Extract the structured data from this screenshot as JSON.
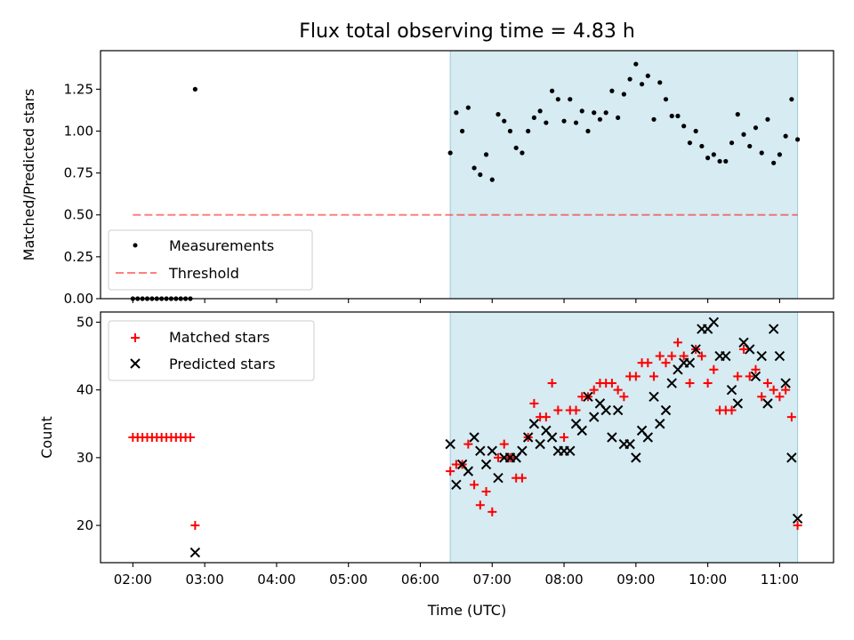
{
  "chart_data": [
    {
      "type": "scatter",
      "title": "Flux total observing time = 4.83 h",
      "xlabel": "",
      "ylabel": "Matched/Predicted stars",
      "ylim": [
        0,
        1.48
      ],
      "xlim": [
        "01:33",
        "11:45"
      ],
      "yticks": [
        0.0,
        0.25,
        0.5,
        0.75,
        1.0,
        1.25
      ],
      "ytick_labels": [
        "0.00",
        "0.25",
        "0.50",
        "0.75",
        "1.00",
        "1.25"
      ],
      "shaded_interval": {
        "start": "06:25",
        "end": "11:15",
        "color": "#add8e6"
      },
      "legend_position": "lower-left",
      "legend": [
        "Measurements",
        "Threshold"
      ],
      "threshold": {
        "value": 0.5,
        "x_start": "02:00",
        "x_end": "11:15",
        "color": "#ff0000"
      },
      "series": [
        {
          "name": "Measurements",
          "marker": "dot",
          "color": "#000000",
          "points": [
            [
              "02:00",
              0.0
            ],
            [
              "02:04",
              0.0
            ],
            [
              "02:08",
              0.0
            ],
            [
              "02:12",
              0.0
            ],
            [
              "02:16",
              0.0
            ],
            [
              "02:20",
              0.0
            ],
            [
              "02:24",
              0.0
            ],
            [
              "02:28",
              0.0
            ],
            [
              "02:32",
              0.0
            ],
            [
              "02:36",
              0.0
            ],
            [
              "02:40",
              0.0
            ],
            [
              "02:44",
              0.0
            ],
            [
              "02:48",
              0.0
            ],
            [
              "02:52",
              1.25
            ],
            [
              "06:25",
              0.87
            ],
            [
              "06:30",
              1.11
            ],
            [
              "06:35",
              1.0
            ],
            [
              "06:40",
              1.14
            ],
            [
              "06:45",
              0.78
            ],
            [
              "06:50",
              0.74
            ],
            [
              "06:55",
              0.86
            ],
            [
              "07:00",
              0.71
            ],
            [
              "07:05",
              1.1
            ],
            [
              "07:10",
              1.06
            ],
            [
              "07:15",
              1.0
            ],
            [
              "07:20",
              0.9
            ],
            [
              "07:25",
              0.87
            ],
            [
              "07:30",
              1.0
            ],
            [
              "07:35",
              1.08
            ],
            [
              "07:40",
              1.12
            ],
            [
              "07:45",
              1.05
            ],
            [
              "07:50",
              1.24
            ],
            [
              "07:55",
              1.19
            ],
            [
              "08:00",
              1.06
            ],
            [
              "08:05",
              1.19
            ],
            [
              "08:10",
              1.05
            ],
            [
              "08:15",
              1.12
            ],
            [
              "08:20",
              1.0
            ],
            [
              "08:25",
              1.11
            ],
            [
              "08:30",
              1.07
            ],
            [
              "08:35",
              1.11
            ],
            [
              "08:40",
              1.24
            ],
            [
              "08:45",
              1.08
            ],
            [
              "08:50",
              1.22
            ],
            [
              "08:55",
              1.31
            ],
            [
              "09:00",
              1.4
            ],
            [
              "09:05",
              1.28
            ],
            [
              "09:10",
              1.33
            ],
            [
              "09:15",
              1.07
            ],
            [
              "09:20",
              1.29
            ],
            [
              "09:25",
              1.19
            ],
            [
              "09:30",
              1.09
            ],
            [
              "09:35",
              1.09
            ],
            [
              "09:40",
              1.03
            ],
            [
              "09:45",
              0.93
            ],
            [
              "09:50",
              1.0
            ],
            [
              "09:55",
              0.91
            ],
            [
              "10:00",
              0.84
            ],
            [
              "10:05",
              0.86
            ],
            [
              "10:10",
              0.82
            ],
            [
              "10:15",
              0.82
            ],
            [
              "10:20",
              0.93
            ],
            [
              "10:25",
              1.1
            ],
            [
              "10:30",
              0.98
            ],
            [
              "10:35",
              0.91
            ],
            [
              "10:40",
              1.02
            ],
            [
              "10:45",
              0.87
            ],
            [
              "10:50",
              1.07
            ],
            [
              "10:55",
              0.81
            ],
            [
              "11:00",
              0.86
            ],
            [
              "11:05",
              0.97
            ],
            [
              "11:10",
              1.19
            ],
            [
              "11:15",
              0.95
            ]
          ]
        },
        {
          "name": "Threshold",
          "marker": "dashed-line",
          "color": "#ff0000",
          "points": [
            [
              "02:00",
              0.5
            ],
            [
              "11:15",
              0.5
            ]
          ]
        }
      ]
    },
    {
      "type": "scatter",
      "title": "",
      "xlabel": "Time (UTC)",
      "ylabel": "Count",
      "ylim": [
        14.5,
        51.5
      ],
      "xlim": [
        "01:33",
        "11:45"
      ],
      "yticks": [
        20,
        30,
        40,
        50
      ],
      "ytick_labels": [
        "20",
        "30",
        "40",
        "50"
      ],
      "xticks": [
        "02:00",
        "03:00",
        "04:00",
        "05:00",
        "06:00",
        "07:00",
        "08:00",
        "09:00",
        "10:00",
        "11:00"
      ],
      "shaded_interval": {
        "start": "06:25",
        "end": "11:15",
        "color": "#add8e6"
      },
      "legend_position": "upper-left",
      "legend": [
        "Matched stars",
        "Predicted stars"
      ],
      "series": [
        {
          "name": "Matched stars",
          "marker": "plus",
          "color": "#ff0000",
          "points": [
            [
              "02:00",
              33
            ],
            [
              "02:04",
              33
            ],
            [
              "02:08",
              33
            ],
            [
              "02:12",
              33
            ],
            [
              "02:16",
              33
            ],
            [
              "02:20",
              33
            ],
            [
              "02:24",
              33
            ],
            [
              "02:28",
              33
            ],
            [
              "02:32",
              33
            ],
            [
              "02:36",
              33
            ],
            [
              "02:40",
              33
            ],
            [
              "02:44",
              33
            ],
            [
              "02:48",
              33
            ],
            [
              "02:52",
              20
            ],
            [
              "06:25",
              28
            ],
            [
              "06:30",
              29
            ],
            [
              "06:35",
              29
            ],
            [
              "06:40",
              32
            ],
            [
              "06:45",
              26
            ],
            [
              "06:50",
              23
            ],
            [
              "06:55",
              25
            ],
            [
              "07:00",
              22
            ],
            [
              "07:05",
              30
            ],
            [
              "07:10",
              32
            ],
            [
              "07:15",
              30
            ],
            [
              "07:20",
              27
            ],
            [
              "07:25",
              27
            ],
            [
              "07:30",
              33
            ],
            [
              "07:35",
              38
            ],
            [
              "07:40",
              36
            ],
            [
              "07:45",
              36
            ],
            [
              "07:50",
              41
            ],
            [
              "07:55",
              37
            ],
            [
              "08:00",
              33
            ],
            [
              "08:05",
              37
            ],
            [
              "08:10",
              37
            ],
            [
              "08:15",
              39
            ],
            [
              "08:20",
              39
            ],
            [
              "08:25",
              40
            ],
            [
              "08:30",
              41
            ],
            [
              "08:35",
              41
            ],
            [
              "08:40",
              41
            ],
            [
              "08:45",
              40
            ],
            [
              "08:50",
              39
            ],
            [
              "08:55",
              42
            ],
            [
              "09:00",
              42
            ],
            [
              "09:05",
              44
            ],
            [
              "09:10",
              44
            ],
            [
              "09:15",
              42
            ],
            [
              "09:20",
              45
            ],
            [
              "09:25",
              44
            ],
            [
              "09:30",
              45
            ],
            [
              "09:35",
              47
            ],
            [
              "09:40",
              45
            ],
            [
              "09:45",
              41
            ],
            [
              "09:50",
              46
            ],
            [
              "09:55",
              45
            ],
            [
              "10:00",
              41
            ],
            [
              "10:05",
              43
            ],
            [
              "10:10",
              37
            ],
            [
              "10:15",
              37
            ],
            [
              "10:20",
              37
            ],
            [
              "10:25",
              42
            ],
            [
              "10:30",
              46
            ],
            [
              "10:35",
              42
            ],
            [
              "10:40",
              43
            ],
            [
              "10:45",
              39
            ],
            [
              "10:50",
              41
            ],
            [
              "10:55",
              40
            ],
            [
              "11:00",
              39
            ],
            [
              "11:05",
              40
            ],
            [
              "11:10",
              36
            ],
            [
              "11:15",
              20
            ]
          ]
        },
        {
          "name": "Predicted stars",
          "marker": "x",
          "color": "#000000",
          "points": [
            [
              "02:52",
              16
            ],
            [
              "06:25",
              32
            ],
            [
              "06:30",
              26
            ],
            [
              "06:35",
              29
            ],
            [
              "06:40",
              28
            ],
            [
              "06:45",
              33
            ],
            [
              "06:50",
              31
            ],
            [
              "06:55",
              29
            ],
            [
              "07:00",
              31
            ],
            [
              "07:05",
              27
            ],
            [
              "07:10",
              30
            ],
            [
              "07:15",
              30
            ],
            [
              "07:20",
              30
            ],
            [
              "07:25",
              31
            ],
            [
              "07:30",
              33
            ],
            [
              "07:35",
              35
            ],
            [
              "07:40",
              32
            ],
            [
              "07:45",
              34
            ],
            [
              "07:50",
              33
            ],
            [
              "07:55",
              31
            ],
            [
              "08:00",
              31
            ],
            [
              "08:05",
              31
            ],
            [
              "08:10",
              35
            ],
            [
              "08:15",
              34
            ],
            [
              "08:20",
              39
            ],
            [
              "08:25",
              36
            ],
            [
              "08:30",
              38
            ],
            [
              "08:35",
              37
            ],
            [
              "08:40",
              33
            ],
            [
              "08:45",
              37
            ],
            [
              "08:50",
              32
            ],
            [
              "08:55",
              32
            ],
            [
              "09:00",
              30
            ],
            [
              "09:05",
              34
            ],
            [
              "09:10",
              33
            ],
            [
              "09:15",
              39
            ],
            [
              "09:20",
              35
            ],
            [
              "09:25",
              37
            ],
            [
              "09:30",
              41
            ],
            [
              "09:35",
              43
            ],
            [
              "09:40",
              44
            ],
            [
              "09:45",
              44
            ],
            [
              "09:50",
              46
            ],
            [
              "09:55",
              49
            ],
            [
              "10:00",
              49
            ],
            [
              "10:05",
              50
            ],
            [
              "10:10",
              45
            ],
            [
              "10:15",
              45
            ],
            [
              "10:20",
              40
            ],
            [
              "10:25",
              38
            ],
            [
              "10:30",
              47
            ],
            [
              "10:35",
              46
            ],
            [
              "10:40",
              42
            ],
            [
              "10:45",
              45
            ],
            [
              "10:50",
              38
            ],
            [
              "10:55",
              49
            ],
            [
              "11:00",
              45
            ],
            [
              "11:05",
              41
            ],
            [
              "11:10",
              30
            ],
            [
              "11:15",
              21
            ]
          ]
        }
      ]
    }
  ]
}
